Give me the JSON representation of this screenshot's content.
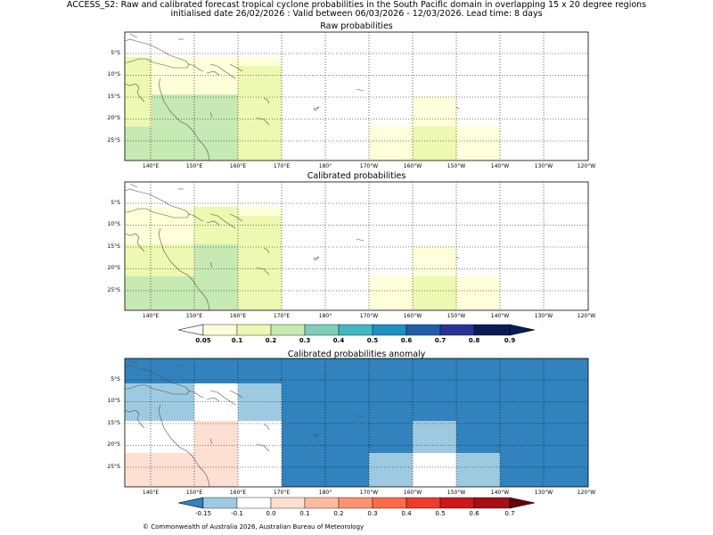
{
  "header": {
    "line1": "ACCESS_S2: Raw and calibrated forecast tropical cyclone probabilities in the South Pacific domain in overlapping 15 x 20 degree regions",
    "line2": "initialised date 26/02/2026 :  Valid between 06/03/2026 - 12/03/2026. Lead time: 8 days"
  },
  "panels": [
    {
      "title": "Raw probabilities"
    },
    {
      "title": "Calibrated probabilities"
    },
    {
      "title": "Calibrated probabilities anomaly"
    }
  ],
  "lat_labels": [
    "5°S",
    "10°S",
    "15°S",
    "20°S",
    "25°S"
  ],
  "lon_labels": [
    "140°E",
    "150°E",
    "160°E",
    "170°E",
    "180°",
    "170°W",
    "160°W",
    "150°W",
    "140°W",
    "130°W",
    "120°W"
  ],
  "prob_colorbar": {
    "labels": [
      "0.05",
      "0.1",
      "0.2",
      "0.3",
      "0.4",
      "0.5",
      "0.6",
      "0.7",
      "0.8",
      "0.9"
    ],
    "colors": [
      "#ffffd9",
      "#edf8b1",
      "#c7e9b4",
      "#7fcdbb",
      "#41b6c4",
      "#1d91c0",
      "#225ea8",
      "#253494",
      "#081d58"
    ]
  },
  "anom_colorbar": {
    "labels": [
      "-0.15",
      "-0.1",
      "0.0",
      "0.1",
      "0.2",
      "0.3",
      "0.4",
      "0.5",
      "0.6",
      "0.7"
    ],
    "colors": [
      "#9ecae1",
      "#ffffff",
      "#fee0d2",
      "#fcbba1",
      "#fc9272",
      "#fb6a4a",
      "#ef3b2c",
      "#cb181d",
      "#a50f15"
    ],
    "under_color": "#3182bd",
    "over_color": "#67000d"
  },
  "copyright": "© Commonwealth of Australia 2026, Australian Bureau of Meteorology"
}
